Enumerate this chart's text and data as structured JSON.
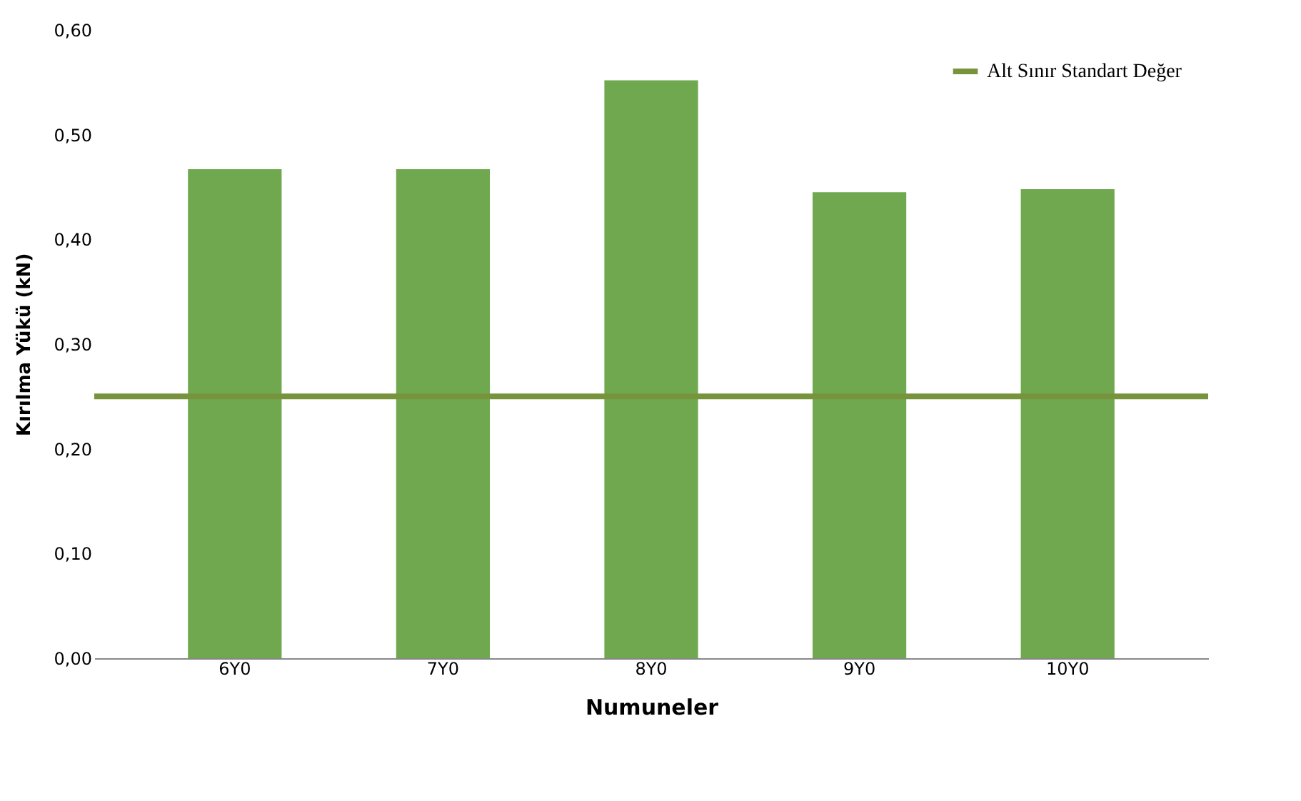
{
  "chart_data": {
    "type": "bar",
    "xlabel": "Numuneler",
    "ylabel": "Kırılma Yükü (kN)",
    "categories": [
      "6Y0",
      "7Y0",
      "8Y0",
      "9Y0",
      "10Y0"
    ],
    "series": [
      {
        "color": "#6fa84e",
        "values": [
          0.467,
          0.467,
          0.552,
          0.445,
          0.448
        ]
      }
    ],
    "ylim": [
      0,
      0.6
    ],
    "yticks": [
      {
        "value": 0,
        "label": "0,00"
      },
      {
        "value": 0.1,
        "label": "0,10"
      },
      {
        "value": 0.2,
        "label": "0,20"
      },
      {
        "value": 0.3,
        "label": "0,30"
      },
      {
        "value": 0.4,
        "label": "0,40"
      },
      {
        "value": 0.5,
        "label": "0,50"
      },
      {
        "value": 0.6,
        "label": "0,60"
      }
    ],
    "ref_lines": [
      {
        "axis": "y",
        "value": 0.25,
        "label": "Alt Sınır Standart Değer",
        "color": "#77933c"
      }
    ],
    "grid": false,
    "legend": "top right"
  }
}
